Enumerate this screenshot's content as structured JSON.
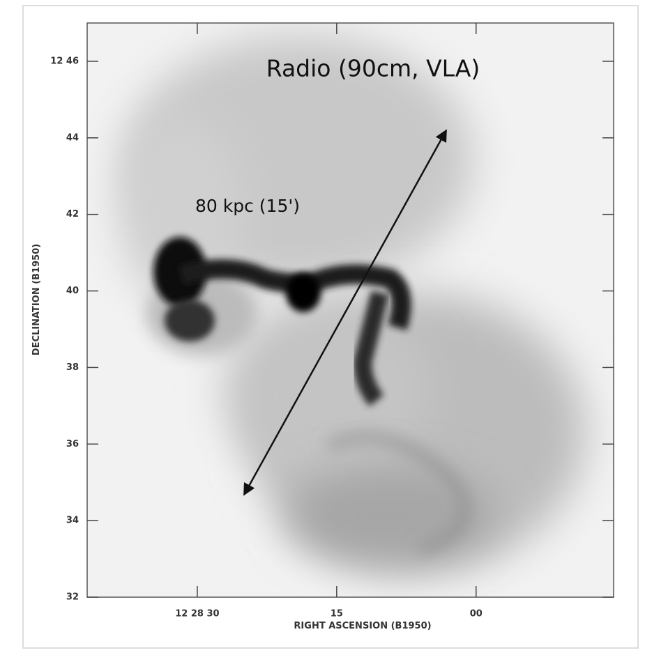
{
  "chart_data": {
    "type": "image",
    "title": "Radio (90cm, VLA)",
    "annotation": "80 kpc (15')",
    "xlabel": "RIGHT ASCENSION (B1950)",
    "ylabel": "DECLINATION (B1950)",
    "xlim": [
      41.85,
      -14.8
    ],
    "ylim": [
      32,
      47
    ],
    "xticks": [
      {
        "value": 30,
        "label": "12 28 30"
      },
      {
        "value": 15,
        "label": "15"
      },
      {
        "value": 0,
        "label": "00"
      }
    ],
    "yticks": [
      {
        "value": 46,
        "label": "12 46"
      },
      44,
      42,
      40,
      38,
      36,
      34,
      32
    ]
  }
}
